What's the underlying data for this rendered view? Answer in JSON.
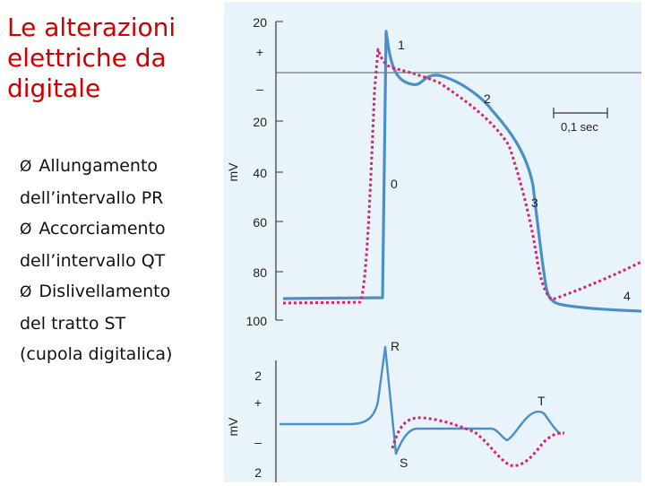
{
  "slide": {
    "title_lines": [
      "Le alterazioni",
      "elettriche da",
      "digitale"
    ],
    "bullets": [
      {
        "symbol": "Ø",
        "lines": [
          "Allungamento",
          "dell’intervallo PR"
        ]
      },
      {
        "symbol": "Ø",
        "lines": [
          "Accorciamento",
          "dell’intervallo QT"
        ]
      },
      {
        "symbol": "Ø",
        "lines": [
          "Dislivellamento",
          "del tratto ST",
          "(cupola digitalica)"
        ]
      }
    ]
  },
  "colors": {
    "title": "#cc0000",
    "normal_trace": "#4a8fc8",
    "digitalis_trace": "#d6246e",
    "panel_background": "#e9f3fa",
    "axis": "#333333"
  },
  "action_potential_panel": {
    "axis_unit": "mV",
    "tick_labels": [
      "20",
      "+",
      "–",
      "20",
      "40",
      "60",
      "80",
      "100"
    ],
    "phase_labels": [
      "1",
      "2",
      "0",
      "3",
      "4"
    ],
    "scale_bar_label": "0,1 sec"
  },
  "ecg_panel": {
    "axis_unit": "mV",
    "tick_labels": [
      "2",
      "+",
      "–",
      "2"
    ],
    "wave_labels": [
      "R",
      "T",
      "S"
    ]
  }
}
